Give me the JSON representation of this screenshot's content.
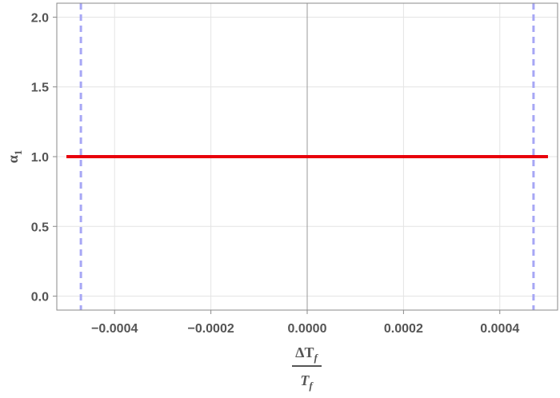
{
  "chart_data": {
    "type": "line",
    "title": "",
    "xlabel": {
      "numerator": "ΔT",
      "numerator_sub": "f",
      "denominator": "T",
      "denominator_sub": "f"
    },
    "ylabel": {
      "symbol": "α",
      "sub": "1"
    },
    "xlim": [
      -0.00052,
      0.00052
    ],
    "ylim": [
      -0.1,
      2.1
    ],
    "x_ticks": [
      -0.0004,
      -0.0002,
      0.0,
      0.0002,
      0.0004
    ],
    "x_tick_labels": [
      "-0.0004",
      "-0.0002",
      "0.0000",
      "0.0002",
      "0.0004"
    ],
    "y_ticks": [
      0.0,
      0.5,
      1.0,
      1.5,
      2.0
    ],
    "y_tick_labels": [
      "0.0",
      "0.5",
      "1.0",
      "1.5",
      "2.0"
    ],
    "grid": true,
    "series": [
      {
        "color": "#e8000b",
        "style": "solid",
        "x": [
          -0.0005,
          0.0005
        ],
        "y": [
          1.0,
          1.0
        ]
      }
    ],
    "vertical_lines": [
      {
        "x": -0.00047,
        "color": "#a7a7f5",
        "style": "dashed"
      },
      {
        "x": 0.00047,
        "color": "#a7a7f5",
        "style": "dashed"
      }
    ],
    "reference_lines": [
      {
        "x": 0.0,
        "color": "#9a9a9a"
      }
    ]
  }
}
